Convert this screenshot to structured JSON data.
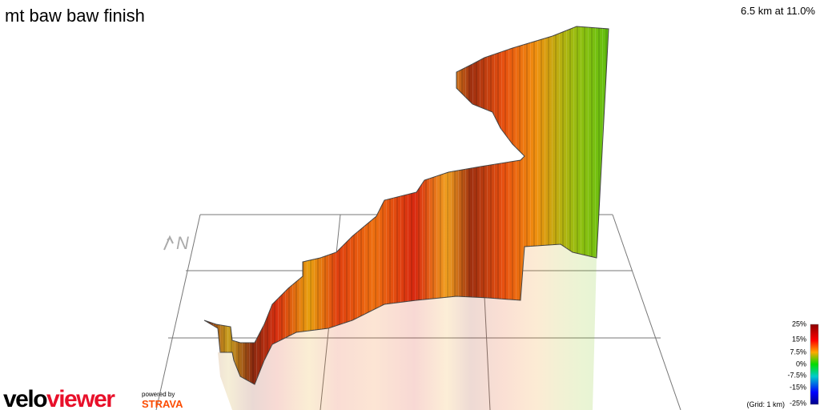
{
  "header": {
    "title": "mt baw baw finish",
    "summary": "6.5 km at 11.0%"
  },
  "compass": "N",
  "legend": {
    "labels": [
      "25%",
      "15%",
      "7.5%",
      "0%",
      "-7.5%",
      "-15%",
      "-25%"
    ],
    "grid_note": "(Grid: 1 km)"
  },
  "branding": {
    "logo_parts": [
      "velo",
      "viewer"
    ],
    "powered_by": "powered by",
    "strava": "STRAVA"
  }
}
